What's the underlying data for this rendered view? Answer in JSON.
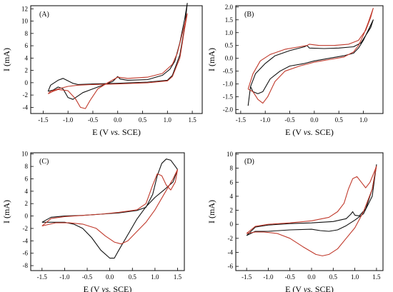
{
  "colors": {
    "trace_black": "#111111",
    "trace_red": "#c0392b"
  },
  "chart_data": [
    {
      "type": "line",
      "panel": "(A)",
      "xlabel": {
        "prefix": "E (V ",
        "italic": "vs.",
        "suffix": " SCE)"
      },
      "ylabel": "I (mA)",
      "xlim": [
        -1.75,
        1.7
      ],
      "ylim": [
        -5,
        12.5
      ],
      "xticks": [
        -1.5,
        -1.0,
        -0.5,
        0.0,
        0.5,
        1.0,
        1.5
      ],
      "xtick_labels": [
        "-1.5",
        "-1.0",
        "-0.5",
        "0.0",
        "0.5",
        "1.0",
        "1.5"
      ],
      "yticks": [
        -4,
        -2,
        0,
        2,
        4,
        6,
        8,
        10,
        12
      ],
      "ytick_labels": [
        "-4",
        "-2",
        "0",
        "2",
        "4",
        "6",
        "8",
        "10",
        "12"
      ],
      "series": [
        {
          "color": "#111111",
          "x": [
            -1.4,
            -1.3,
            -1.2,
            -1.1,
            -1.0,
            -0.9,
            -0.7,
            -0.4,
            -0.1,
            0.0,
            0.05,
            0.2,
            0.6,
            0.9,
            1.05,
            1.15,
            1.25,
            1.35,
            1.4,
            1.35,
            1.25,
            1.1,
            1.0,
            0.6,
            0.0,
            -0.5,
            -0.8,
            -0.9,
            -1.0,
            -1.1,
            -1.2,
            -1.35,
            -1.4
          ],
          "y": [
            -1.4,
            -1.2,
            -0.7,
            -1.0,
            -2.4,
            -2.7,
            -1.6,
            -0.7,
            0.2,
            1.0,
            0.6,
            0.4,
            0.5,
            1.2,
            2.2,
            3.5,
            6.5,
            10.5,
            12.9,
            9.2,
            4.5,
            1.2,
            0.4,
            0.1,
            -0.1,
            -0.2,
            -0.3,
            -0.1,
            0.3,
            0.7,
            0.4,
            -0.4,
            -1.4
          ]
        },
        {
          "color": "#c0392b",
          "x": [
            -1.4,
            -1.3,
            -1.2,
            -1.0,
            -0.85,
            -0.75,
            -0.65,
            -0.55,
            -0.4,
            -0.2,
            0.0,
            0.2,
            0.6,
            0.9,
            1.1,
            1.2,
            1.3,
            1.4,
            1.35,
            1.25,
            1.1,
            1.0,
            0.6,
            0.0,
            -0.5,
            -0.8,
            -1.0,
            -1.2,
            -1.35,
            -1.4
          ],
          "y": [
            -1.8,
            -1.4,
            -1.1,
            -1.3,
            -2.6,
            -4.0,
            -4.2,
            -2.8,
            -1.0,
            0.0,
            0.9,
            0.7,
            0.9,
            1.5,
            3.0,
            4.8,
            8.0,
            11.2,
            9.0,
            4.0,
            1.0,
            0.3,
            0.0,
            -0.2,
            -0.3,
            -0.4,
            -0.6,
            -1.0,
            -1.4,
            -1.8
          ]
        }
      ]
    },
    {
      "type": "line",
      "panel": "(B)",
      "xlabel": {
        "prefix": "E (V ",
        "italic": "vs.",
        "suffix": " SCE)"
      },
      "ylabel": "I (mA)",
      "xlim": [
        -1.6,
        1.4
      ],
      "ylim": [
        -2.15,
        2.05
      ],
      "xticks": [
        -1.5,
        -1.0,
        -0.5,
        0.0,
        0.5,
        1.0
      ],
      "xtick_labels": [
        "-1.5",
        "-1.0",
        "-0.5",
        "0.0",
        "0.5",
        "1.0"
      ],
      "yticks": [
        -2.0,
        -1.5,
        -1.0,
        -0.5,
        0.0,
        0.5,
        1.0,
        1.5,
        2.0
      ],
      "ytick_labels": [
        "-2.0",
        "-1.5",
        "-1.0",
        "-0.5",
        "0.0",
        "0.5",
        "1.0",
        "1.5",
        "2.0"
      ],
      "series": [
        {
          "color": "#111111",
          "x": [
            -1.35,
            -1.3,
            -1.25,
            -1.15,
            -1.05,
            -0.9,
            -0.7,
            -0.5,
            -0.2,
            0.0,
            0.3,
            0.6,
            0.8,
            0.9,
            1.0,
            1.1,
            1.2,
            1.15,
            1.05,
            0.95,
            0.8,
            0.5,
            0.2,
            -0.1,
            -0.15,
            -0.2,
            -0.5,
            -0.8,
            -1.0,
            -1.2,
            -1.3,
            -1.35
          ],
          "y": [
            -1.85,
            -1.1,
            -1.3,
            -1.38,
            -1.3,
            -0.8,
            -0.5,
            -0.3,
            -0.2,
            -0.1,
            0.0,
            0.1,
            0.2,
            0.4,
            0.7,
            1.1,
            1.5,
            1.2,
            0.9,
            0.6,
            0.45,
            0.4,
            0.38,
            0.4,
            0.5,
            0.45,
            0.3,
            0.1,
            -0.2,
            -0.6,
            -1.1,
            -1.85
          ]
        },
        {
          "color": "#c0392b",
          "x": [
            -1.35,
            -1.25,
            -1.15,
            -1.05,
            -0.95,
            -0.8,
            -0.6,
            -0.3,
            0.0,
            0.3,
            0.6,
            0.8,
            0.9,
            1.0,
            1.1,
            1.2,
            1.15,
            1.05,
            0.9,
            0.7,
            0.4,
            0.1,
            -0.1,
            -0.15,
            -0.3,
            -0.6,
            -0.9,
            -1.1,
            -1.25,
            -1.35
          ],
          "y": [
            -1.2,
            -1.3,
            -1.6,
            -1.75,
            -1.5,
            -0.9,
            -0.5,
            -0.3,
            -0.15,
            -0.05,
            0.05,
            0.25,
            0.5,
            0.9,
            1.4,
            1.95,
            1.6,
            1.1,
            0.7,
            0.55,
            0.5,
            0.5,
            0.55,
            0.5,
            0.45,
            0.35,
            0.15,
            -0.1,
            -0.6,
            -1.2
          ]
        }
      ]
    },
    {
      "type": "line",
      "panel": "(C)",
      "xlabel": {
        "prefix": "E (V ",
        "italic": "vs.",
        "suffix": " SCE)"
      },
      "ylabel": "I (mA)",
      "xlim": [
        -1.75,
        1.65
      ],
      "ylim": [
        -8.8,
        10.2
      ],
      "xticks": [
        -1.5,
        -1.0,
        -0.5,
        0.0,
        0.5,
        1.0,
        1.5
      ],
      "xtick_labels": [
        "-1.5",
        "-1.0",
        "-0.5",
        "0.0",
        "0.5",
        "1.0",
        "1.5"
      ],
      "yticks": [
        -8,
        -6,
        -4,
        -2,
        0,
        2,
        4,
        6,
        8,
        10
      ],
      "ytick_labels": [
        "-8",
        "-6",
        "-4",
        "-2",
        "0",
        "2",
        "4",
        "6",
        "8",
        "10"
      ],
      "series": [
        {
          "color": "#111111",
          "x": [
            -1.5,
            -1.3,
            -1.0,
            -0.6,
            -0.2,
            0.2,
            0.6,
            0.8,
            0.95,
            1.05,
            1.15,
            1.25,
            1.35,
            1.45,
            1.5,
            1.4,
            1.2,
            1.0,
            0.8,
            0.6,
            0.4,
            0.2,
            0.1,
            0.0,
            -0.2,
            -0.4,
            -0.6,
            -0.8,
            -1.0,
            -1.3,
            -1.5
          ],
          "y": [
            -1.0,
            -0.2,
            0.0,
            0.1,
            0.3,
            0.5,
            0.9,
            1.4,
            3.5,
            6.5,
            8.5,
            9.2,
            9.0,
            8.0,
            7.5,
            5.5,
            4.2,
            3.0,
            1.5,
            -0.5,
            -3.0,
            -5.5,
            -6.8,
            -6.8,
            -5.5,
            -3.5,
            -2.0,
            -1.3,
            -1.0,
            -1.0,
            -1.0
          ]
        },
        {
          "color": "#c0392b",
          "x": [
            -1.5,
            -1.3,
            -1.0,
            -0.6,
            -0.2,
            0.2,
            0.6,
            0.8,
            0.95,
            1.05,
            1.15,
            1.25,
            1.35,
            1.45,
            1.5,
            1.4,
            1.2,
            1.0,
            0.8,
            0.6,
            0.4,
            0.25,
            0.1,
            -0.1,
            -0.3,
            -0.6,
            -0.9,
            -1.2,
            -1.5
          ],
          "y": [
            -1.6,
            -0.4,
            -0.1,
            0.1,
            0.3,
            0.6,
            1.0,
            2.0,
            5.0,
            6.8,
            6.5,
            5.0,
            4.2,
            5.5,
            7.5,
            6.0,
            3.5,
            1.0,
            -1.0,
            -2.5,
            -4.0,
            -4.5,
            -4.2,
            -3.2,
            -2.0,
            -1.3,
            -1.1,
            -1.1,
            -1.6
          ]
        }
      ]
    },
    {
      "type": "line",
      "panel": "(D)",
      "xlabel": {
        "prefix": "E (V ",
        "italic": "vs.",
        "suffix": " SCE)"
      },
      "ylabel": "I (mA)",
      "xlim": [
        -1.75,
        1.65
      ],
      "ylim": [
        -6.6,
        10.2
      ],
      "xticks": [
        -1.5,
        -1.0,
        -0.5,
        0.0,
        0.5,
        1.0,
        1.5
      ],
      "xtick_labels": [
        "-1.5",
        "-1.0",
        "-0.5",
        "0.0",
        "0.5",
        "1.0",
        "1.5"
      ],
      "yticks": [
        -6,
        -4,
        -2,
        0,
        2,
        4,
        6,
        8,
        10
      ],
      "ytick_labels": [
        "-6",
        "-4",
        "-2",
        "0",
        "2",
        "4",
        "6",
        "8",
        "10"
      ],
      "series": [
        {
          "color": "#111111",
          "x": [
            -1.5,
            -1.3,
            -1.0,
            -0.5,
            0.0,
            0.5,
            0.8,
            0.9,
            0.95,
            1.0,
            1.1,
            1.25,
            1.4,
            1.5,
            1.4,
            1.2,
            1.0,
            0.8,
            0.6,
            0.4,
            0.2,
            0.0,
            -0.5,
            -1.0,
            -1.3,
            -1.5
          ],
          "y": [
            -1.6,
            -0.4,
            -0.1,
            0.1,
            0.2,
            0.4,
            0.8,
            1.4,
            1.8,
            1.3,
            1.2,
            2.2,
            5.0,
            8.5,
            4.0,
            1.5,
            0.6,
            -0.2,
            -0.8,
            -1.0,
            -0.9,
            -0.7,
            -0.8,
            -1.0,
            -1.0,
            -1.6
          ]
        },
        {
          "color": "#c0392b",
          "x": [
            -1.5,
            -1.3,
            -1.0,
            -0.5,
            0.0,
            0.4,
            0.6,
            0.75,
            0.85,
            0.95,
            1.05,
            1.15,
            1.25,
            1.35,
            1.45,
            1.5,
            1.4,
            1.2,
            1.0,
            0.8,
            0.6,
            0.4,
            0.25,
            0.1,
            -0.2,
            -0.5,
            -0.8,
            -1.1,
            -1.3,
            -1.5
          ],
          "y": [
            -1.3,
            -0.3,
            0.0,
            0.2,
            0.5,
            1.0,
            1.8,
            3.0,
            5.0,
            6.5,
            6.8,
            6.0,
            5.2,
            6.0,
            7.5,
            8.3,
            5.0,
            1.8,
            -0.5,
            -2.0,
            -3.5,
            -4.3,
            -4.5,
            -4.3,
            -3.2,
            -2.0,
            -1.3,
            -1.1,
            -1.1,
            -1.3
          ]
        }
      ]
    }
  ]
}
